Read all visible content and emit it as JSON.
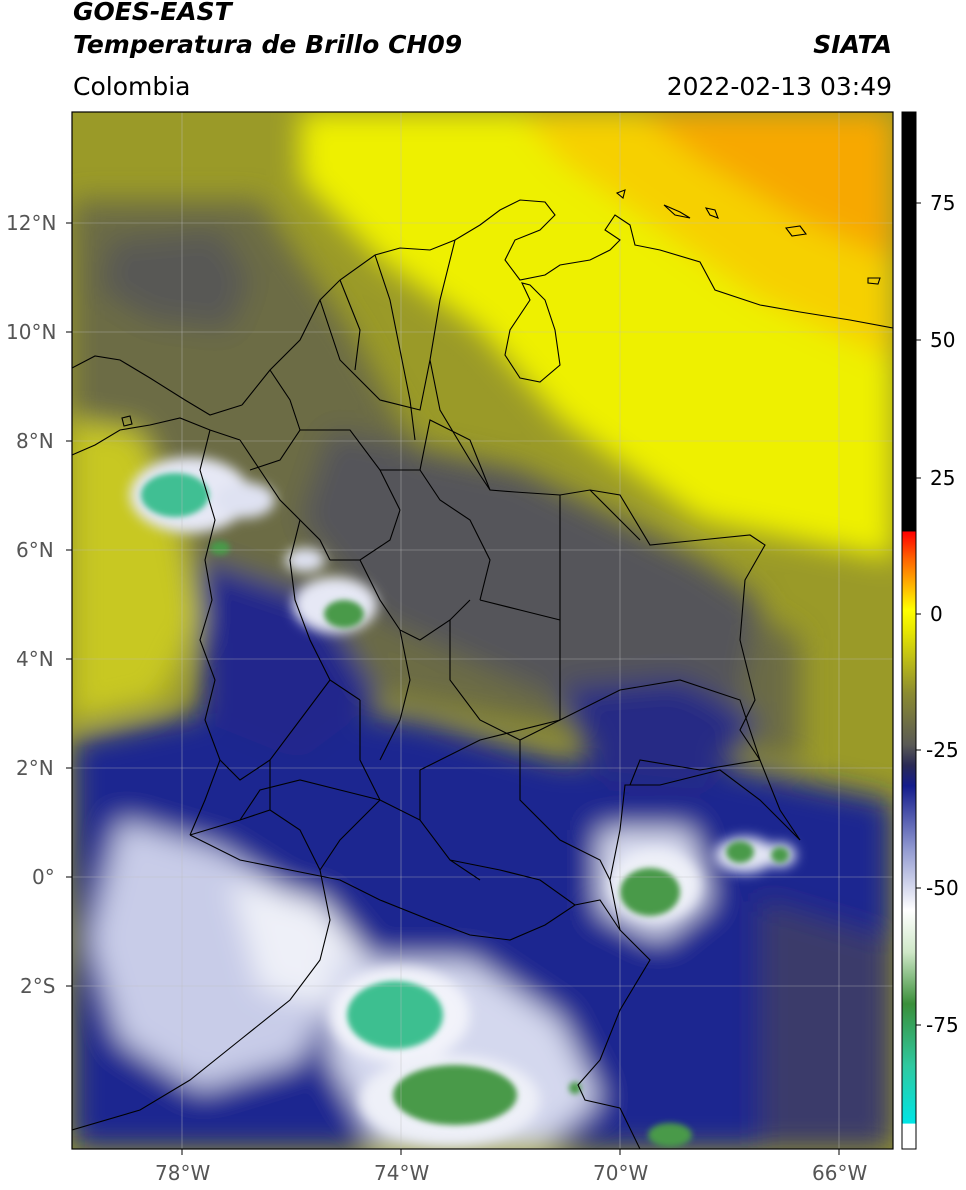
{
  "header": {
    "satellite": "GOES-EAST",
    "product": "Temperatura de Brillo CH09",
    "region": "Colombia",
    "agency": "SIATA",
    "datetime": "2022-02-13 03:49"
  },
  "map": {
    "lon_range": [
      -79.9,
      -64.9
    ],
    "lat_range": [
      -5.2,
      14.0
    ],
    "lat_ticks": [
      {
        "value": 12,
        "label": "12°N"
      },
      {
        "value": 10,
        "label": "10°N"
      },
      {
        "value": 8,
        "label": "8°N"
      },
      {
        "value": 6,
        "label": "6°N"
      },
      {
        "value": 4,
        "label": "4°N"
      },
      {
        "value": 2,
        "label": "2°N"
      },
      {
        "value": 0,
        "label": "0°"
      },
      {
        "value": -2,
        "label": "2°S"
      }
    ],
    "lon_ticks": [
      {
        "value": -78,
        "label": "78°W"
      },
      {
        "value": -74,
        "label": "74°W"
      },
      {
        "value": -70,
        "label": "70°W"
      },
      {
        "value": -66,
        "label": "66°W"
      }
    ],
    "gridlines": true,
    "colors": {
      "warm_orange": "#f7a800",
      "yellow": "#f3f000",
      "olive": "#9a9a28",
      "gray": "#5a5a55",
      "navy": "#1c2590",
      "white_cloud": "#e8ecf5",
      "green": "#4a9a4a",
      "teal": "#3cbf90"
    }
  },
  "colorbar": {
    "range": [
      -100,
      90
    ],
    "tick_labels": [
      {
        "value": 75,
        "label": "75"
      },
      {
        "value": 50,
        "label": "50"
      },
      {
        "value": 25,
        "label": "25"
      },
      {
        "value": 0,
        "label": "0"
      },
      {
        "value": -25,
        "label": "-25"
      },
      {
        "value": -50,
        "label": "-50"
      },
      {
        "value": -75,
        "label": "-75"
      }
    ]
  }
}
